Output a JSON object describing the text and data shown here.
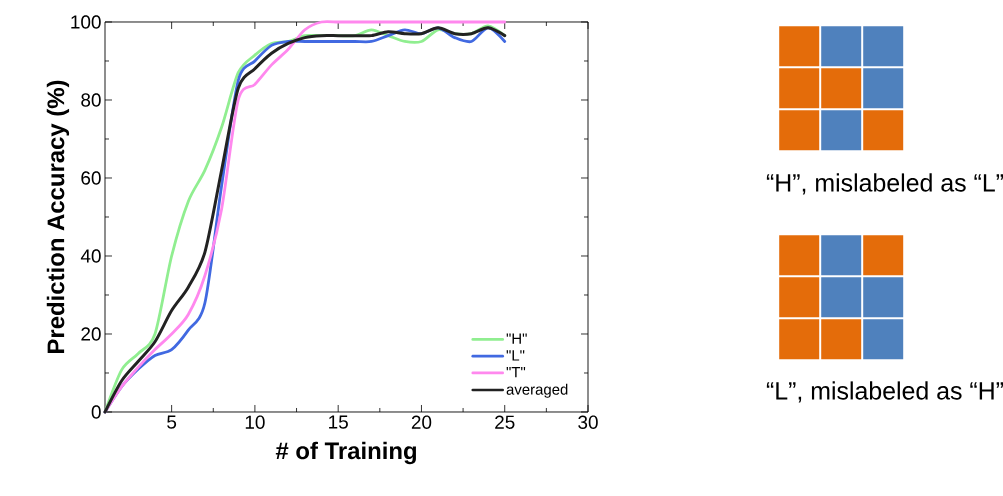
{
  "chart_data": {
    "type": "line",
    "xlabel": "# of Training",
    "ylabel": "Prediction Accuracy (%)",
    "xlim": [
      1,
      30
    ],
    "xticks": [
      5,
      10,
      15,
      20,
      25,
      30
    ],
    "ylim": [
      0,
      100
    ],
    "yticks": [
      0,
      20,
      40,
      60,
      80,
      100
    ],
    "legend": "bottom right",
    "line_style": "solid",
    "x": [
      1,
      2,
      3,
      4,
      5,
      6,
      7,
      8,
      9,
      10,
      11,
      12,
      13,
      14,
      15,
      16,
      17,
      18,
      19,
      20,
      21,
      22,
      23,
      24,
      25
    ],
    "series": [
      {
        "name": "\"H\"",
        "color": "#90ee90",
        "values": [
          0,
          10.8,
          15,
          20,
          40,
          54,
          62,
          73,
          87,
          91.5,
          94.5,
          95,
          96.5,
          96.5,
          96.5,
          96.5,
          98,
          96.5,
          95,
          95,
          98,
          97,
          97,
          99,
          96.5
        ]
      },
      {
        "name": "\"L\"",
        "color": "#4169e1",
        "values": [
          0,
          6.5,
          11,
          14.5,
          16,
          21,
          28,
          58,
          85,
          90,
          94,
          95,
          95,
          95,
          95,
          95,
          95,
          96.5,
          98,
          97,
          98.5,
          96,
          95,
          98.5,
          95
        ]
      },
      {
        "name": "\"T\"",
        "color": "#ff88ee",
        "values": [
          0,
          6.5,
          11.5,
          16,
          20,
          25,
          35,
          52,
          80,
          84,
          89,
          93,
          98,
          100,
          100,
          100,
          100,
          100,
          100,
          100,
          100,
          100,
          100,
          100,
          100
        ]
      },
      {
        "name": "averaged",
        "color": "#222222",
        "values": [
          0,
          8,
          13,
          18,
          26,
          32,
          41,
          62,
          83,
          88,
          92,
          94.5,
          96,
          96.5,
          96.5,
          96.5,
          96.5,
          97.5,
          97,
          97,
          98.5,
          97,
          97,
          98.5,
          96.5
        ]
      }
    ],
    "annotations": [
      "“H”, mislabeled as “L”",
      "“L”, mislabeled as “H”"
    ]
  }
}
